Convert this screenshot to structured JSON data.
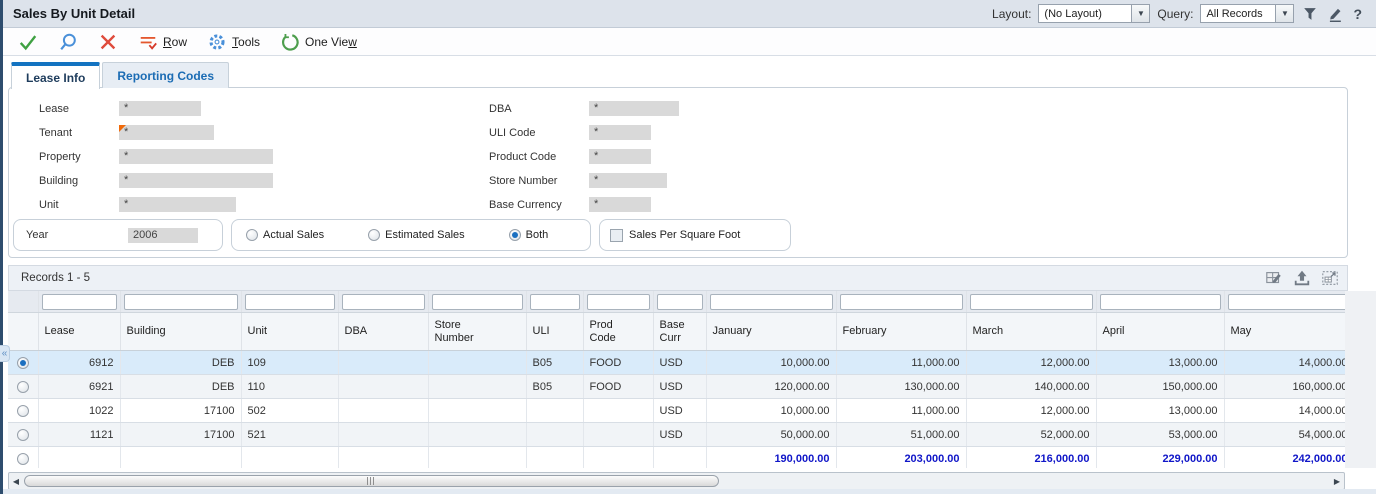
{
  "header": {
    "title": "Sales By Unit Detail",
    "layout_label": "Layout:",
    "layout_value": "(No Layout)",
    "query_label": "Query:",
    "query_value": "All Records",
    "help_glyph": "?"
  },
  "toolbar": {
    "row": {
      "pre": "",
      "accel": "R",
      "rest": "ow"
    },
    "tools": {
      "pre": "",
      "accel": "T",
      "rest": "ools"
    },
    "one_view": {
      "pre": "One Vie",
      "accel": "w",
      "rest": ""
    }
  },
  "icons": {
    "header": [
      "filter-funnel-icon",
      "edit-pencil-icon",
      "help-icon"
    ],
    "toolbar": [
      "ok-check-icon",
      "find-search-icon",
      "close-x-icon",
      "row-menu-icon",
      "tools-gear-icon",
      "one-view-chart-icon"
    ],
    "grid_bar": [
      "format-grid-icon",
      "export-grid-icon",
      "expand-grid-icon"
    ]
  },
  "tabs": [
    {
      "label": "Lease Info",
      "active": true
    },
    {
      "label": "Reporting Codes",
      "active": false
    }
  ],
  "form": {
    "fields_left": [
      {
        "label": "Lease",
        "value": "*"
      },
      {
        "label": "Tenant",
        "value": "*",
        "has_assist_marker": true
      },
      {
        "label": "Property",
        "value": "*"
      },
      {
        "label": "Building",
        "value": "*"
      },
      {
        "label": "Unit",
        "value": "*"
      }
    ],
    "fields_right": [
      {
        "label": "DBA",
        "value": "*"
      },
      {
        "label": "ULI Code",
        "value": "*"
      },
      {
        "label": "Product Code",
        "value": "*"
      },
      {
        "label": "Store Number",
        "value": "*"
      },
      {
        "label": "Base Currency",
        "value": "*"
      }
    ],
    "year": {
      "label": "Year",
      "value": "2006"
    },
    "sales_type_options": [
      {
        "label": "Actual Sales",
        "selected": false
      },
      {
        "label": "Estimated Sales",
        "selected": false
      },
      {
        "label": "Both",
        "selected": true
      }
    ],
    "sales_per_square_foot": {
      "label": "Sales Per Square Foot",
      "checked": false
    }
  },
  "grid": {
    "records_label": "Records 1 - 5",
    "collapse_glyph": "«",
    "columns": [
      "Lease",
      "Building",
      "Unit",
      "DBA",
      "Store Number",
      "ULI",
      "Prod Code",
      "Base Curr",
      "January",
      "February",
      "March",
      "April",
      "May"
    ],
    "rows": [
      {
        "selected": true,
        "is_total": false,
        "cells": [
          "6912",
          "DEB",
          "109",
          "",
          "",
          "B05",
          "FOOD",
          "USD",
          "10,000.00",
          "11,000.00",
          "12,000.00",
          "13,000.00",
          "14,000.00"
        ]
      },
      {
        "selected": false,
        "is_total": false,
        "cells": [
          "6921",
          "DEB",
          "110",
          "",
          "",
          "B05",
          "FOOD",
          "USD",
          "120,000.00",
          "130,000.00",
          "140,000.00",
          "150,000.00",
          "160,000.00"
        ]
      },
      {
        "selected": false,
        "is_total": false,
        "cells": [
          "1022",
          "17100",
          "502",
          "",
          "",
          "",
          "",
          "USD",
          "10,000.00",
          "11,000.00",
          "12,000.00",
          "13,000.00",
          "14,000.00"
        ]
      },
      {
        "selected": false,
        "is_total": false,
        "cells": [
          "1121",
          "17100",
          "521",
          "",
          "",
          "",
          "",
          "USD",
          "50,000.00",
          "51,000.00",
          "52,000.00",
          "53,000.00",
          "54,000.00"
        ]
      },
      {
        "selected": false,
        "is_total": true,
        "cells": [
          "",
          "",
          "",
          "",
          "",
          "",
          "",
          "",
          "190,000.00",
          "203,000.00",
          "216,000.00",
          "229,000.00",
          "242,000.00"
        ]
      }
    ]
  }
}
